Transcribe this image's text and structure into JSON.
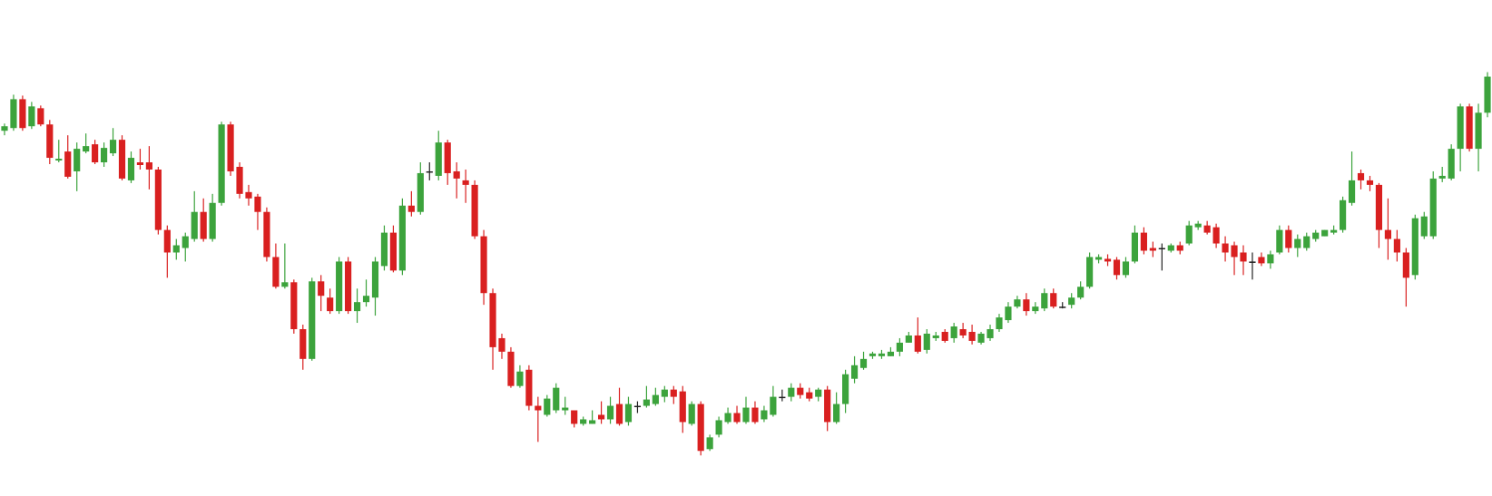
{
  "chart_data": {
    "type": "candlestick",
    "up_color": "#3ca33c",
    "down_color": "#d92020",
    "flat_color": "#222222",
    "ylim": [
      0,
      550
    ],
    "open": [
      405,
      408,
      440,
      410,
      430,
      412,
      372,
      382,
      360,
      382,
      390,
      370,
      380,
      395,
      350,
      370,
      370,
      362,
      295,
      270,
      275,
      285,
      315,
      285,
      325,
      412,
      365,
      337,
      332,
      315,
      265,
      232,
      237,
      185,
      152,
      238,
      220,
      205,
      260,
      205,
      215,
      220,
      255,
      292,
      250,
      322,
      315,
      360,
      355,
      392,
      360,
      350,
      345,
      288,
      225,
      175,
      160,
      122,
      140,
      100,
      90,
      95,
      95,
      95,
      80,
      80,
      90,
      85,
      102,
      82,
      100,
      100,
      102,
      110,
      118,
      116,
      80,
      102,
      52,
      68,
      82,
      92,
      82,
      98,
      85,
      90,
      110,
      110,
      120,
      115,
      110,
      118,
      82,
      102,
      130,
      142,
      155,
      155,
      155,
      160,
      170,
      178,
      162,
      175,
      182,
      175,
      185,
      182,
      170,
      175,
      185,
      195,
      210,
      218,
      205,
      208,
      225,
      210,
      212,
      220,
      232,
      262,
      263,
      262,
      245,
      260,
      292,
      275,
      275,
      272,
      278,
      280,
      298,
      300,
      298,
      280,
      278,
      270,
      260,
      265,
      258,
      270,
      295,
      275,
      275,
      285,
      288,
      292,
      295,
      325,
      358,
      350,
      345,
      295,
      285,
      270,
      245,
      288,
      288,
      352,
      352,
      385,
      432,
      385,
      425
    ],
    "high": [
      413,
      445,
      444,
      437,
      433,
      417,
      395,
      400,
      392,
      402,
      395,
      392,
      408,
      400,
      382,
      385,
      388,
      365,
      300,
      285,
      292,
      338,
      330,
      335,
      415,
      415,
      370,
      345,
      335,
      320,
      280,
      280,
      240,
      190,
      242,
      245,
      230,
      265,
      265,
      230,
      240,
      265,
      300,
      300,
      330,
      338,
      370,
      370,
      405,
      395,
      370,
      362,
      350,
      295,
      230,
      180,
      165,
      145,
      145,
      110,
      112,
      125,
      110,
      95,
      88,
      95,
      105,
      110,
      120,
      110,
      105,
      122,
      120,
      122,
      122,
      122,
      105,
      105,
      68,
      88,
      98,
      100,
      110,
      105,
      100,
      122,
      118,
      125,
      125,
      120,
      120,
      122,
      115,
      140,
      155,
      160,
      160,
      162,
      165,
      175,
      182,
      198,
      185,
      182,
      185,
      192,
      192,
      190,
      182,
      190,
      202,
      215,
      222,
      225,
      215,
      230,
      230,
      215,
      225,
      238,
      270,
      268,
      268,
      265,
      265,
      300,
      298,
      282,
      280,
      280,
      282,
      305,
      305,
      305,
      302,
      288,
      282,
      278,
      270,
      270,
      272,
      300,
      300,
      290,
      292,
      295,
      295,
      300,
      332,
      382,
      362,
      355,
      347,
      330,
      295,
      275,
      312,
      315,
      360,
      365,
      390,
      435,
      435,
      435,
      470
    ],
    "low": [
      400,
      405,
      405,
      407,
      410,
      368,
      370,
      352,
      338,
      380,
      368,
      365,
      377,
      350,
      347,
      362,
      340,
      290,
      242,
      262,
      260,
      282,
      282,
      282,
      322,
      355,
      330,
      322,
      295,
      260,
      230,
      230,
      180,
      140,
      150,
      205,
      202,
      202,
      202,
      192,
      210,
      200,
      250,
      248,
      245,
      310,
      312,
      350,
      350,
      345,
      330,
      325,
      285,
      212,
      140,
      152,
      120,
      120,
      95,
      60,
      88,
      92,
      90,
      76,
      78,
      80,
      80,
      80,
      78,
      78,
      92,
      98,
      100,
      104,
      102,
      70,
      78,
      45,
      50,
      65,
      80,
      80,
      80,
      80,
      82,
      88,
      105,
      105,
      108,
      105,
      105,
      72,
      80,
      92,
      125,
      140,
      152,
      152,
      155,
      155,
      170,
      158,
      158,
      172,
      170,
      170,
      175,
      168,
      168,
      172,
      182,
      192,
      208,
      200,
      202,
      205,
      208,
      208,
      208,
      218,
      230,
      258,
      255,
      240,
      242,
      258,
      268,
      265,
      250,
      270,
      268,
      278,
      295,
      290,
      275,
      260,
      245,
      245,
      240,
      255,
      252,
      268,
      270,
      265,
      272,
      282,
      288,
      290,
      292,
      322,
      340,
      338,
      275,
      262,
      260,
      210,
      240,
      285,
      285,
      348,
      350,
      360,
      382,
      360,
      420
    ],
    "close": [
      410,
      440,
      408,
      432,
      412,
      375,
      374,
      354,
      385,
      388,
      370,
      386,
      395,
      352,
      375,
      367,
      362,
      295,
      270,
      278,
      288,
      315,
      285,
      325,
      412,
      360,
      335,
      330,
      315,
      265,
      232,
      237,
      185,
      152,
      238,
      222,
      205,
      260,
      205,
      215,
      222,
      260,
      292,
      250,
      322,
      315,
      358,
      360,
      392,
      358,
      352,
      345,
      288,
      225,
      165,
      160,
      122,
      138,
      100,
      95,
      108,
      120,
      98,
      80,
      85,
      84,
      85,
      100,
      80,
      102,
      100,
      107,
      112,
      118,
      110,
      82,
      102,
      50,
      65,
      84,
      92,
      82,
      98,
      82,
      95,
      110,
      110,
      120,
      112,
      108,
      118,
      82,
      102,
      135,
      145,
      152,
      158,
      158,
      160,
      170,
      178,
      160,
      180,
      178,
      172,
      188,
      178,
      172,
      180,
      185,
      198,
      210,
      218,
      205,
      210,
      225,
      210,
      210,
      220,
      232,
      265,
      265,
      260,
      245,
      260,
      292,
      272,
      272,
      275,
      278,
      272,
      300,
      302,
      292,
      280,
      270,
      265,
      260,
      260,
      258,
      268,
      295,
      275,
      285,
      288,
      292,
      295,
      295,
      328,
      350,
      350,
      345,
      295,
      285,
      270,
      242,
      308,
      310,
      352,
      355,
      385,
      432,
      385,
      425,
      465
    ]
  }
}
